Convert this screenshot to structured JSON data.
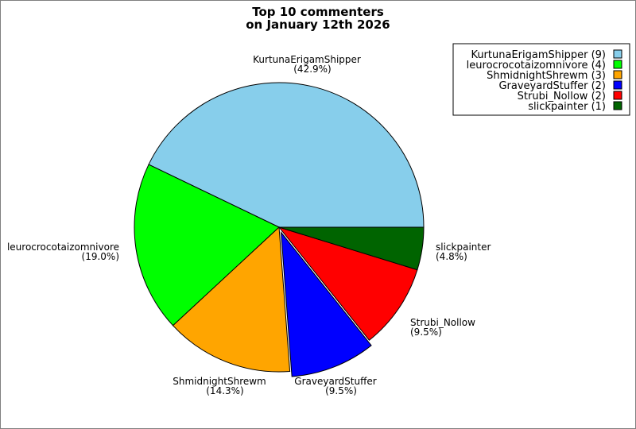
{
  "chart_data": {
    "type": "pie",
    "title_lines": [
      "Top 10 commenters",
      "on January 12th 2026"
    ],
    "slices": [
      {
        "name": "KurtunaErigamShipper",
        "count": 9,
        "percent_label": "(42.9%)",
        "legend": "KurtunaErigamShipper (9)",
        "color": "#87CEEB"
      },
      {
        "name": "leurocrocotaizomnivore",
        "count": 4,
        "percent_label": "(19.0%)",
        "legend": "leurocrocotaizomnivore (4)",
        "color": "#00FF00"
      },
      {
        "name": "ShmidnightShrewm",
        "count": 3,
        "percent_label": "(14.3%)",
        "legend": "ShmidnightShrewm (3)",
        "color": "#FFA500"
      },
      {
        "name": "GraveyardStuffer",
        "count": 2,
        "percent_label": "(9.5%)",
        "legend": "GraveyardStuffer (2)",
        "color": "#0000FF"
      },
      {
        "name": "Strubi_Nollow",
        "count": 2,
        "percent_label": "(9.5%)",
        "legend": "Strubi_Nollow (2)",
        "color": "#FF0000"
      },
      {
        "name": "slickpainter",
        "count": 1,
        "percent_label": "(4.8%)",
        "legend": "slickpainter (1)",
        "color": "#006400"
      }
    ],
    "legend_position": "top-right",
    "exploded_slice": "GraveyardStuffer"
  }
}
